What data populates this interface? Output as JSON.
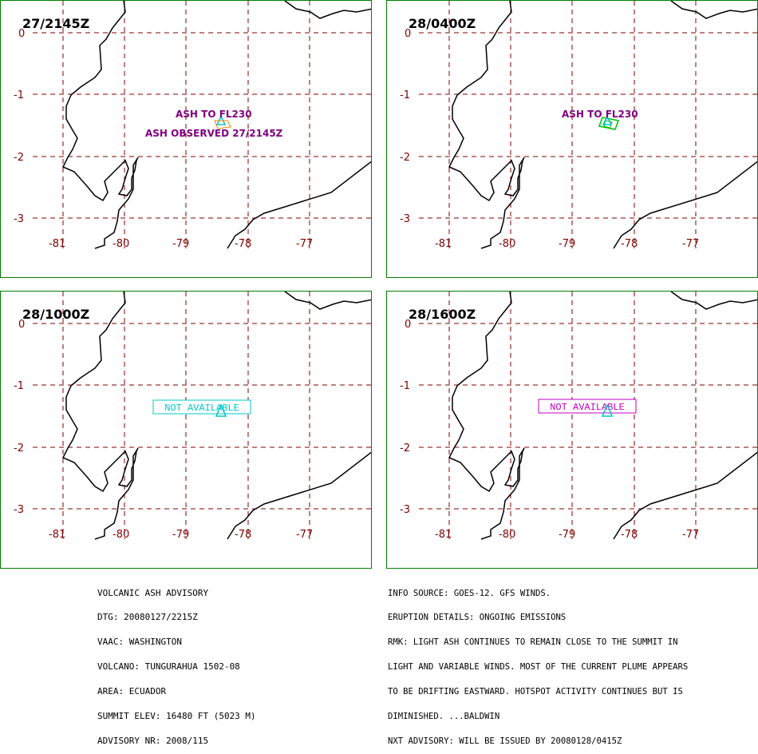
{
  "panels": [
    {
      "title": "27/2145Z",
      "labels": [
        "ASH TO FL230",
        "ASH OBSERVED 27/2145Z"
      ],
      "status": ""
    },
    {
      "title": "28/0400Z",
      "labels": [
        "ASH TO FL230"
      ],
      "status": ""
    },
    {
      "title": "28/1000Z",
      "labels": [],
      "status": "NOT AVAILABLE"
    },
    {
      "title": "28/1600Z",
      "labels": [],
      "status": "NOT AVAILABLE"
    }
  ],
  "axes": {
    "lat_ticks": [
      "0",
      "-1",
      "-2",
      "-3"
    ],
    "lon_ticks": [
      "-81",
      "-80",
      "-79",
      "-78",
      "-77"
    ]
  },
  "advisory_left": [
    "VOLCANIC ASH ADVISORY",
    "DTG: 20080127/2215Z",
    "VAAC: WASHINGTON",
    "VOLCANO: TUNGURAHUA 1502-08",
    "AREA: ECUADOR",
    "SUMMIT ELEV: 16480 FT (5023 M)",
    "ADVISORY NR: 2008/115"
  ],
  "advisory_right": [
    "INFO SOURCE: GOES-12. GFS WINDS.",
    "ERUPTION DETAILS: ONGOING EMISSIONS",
    "RMK: LIGHT ASH CONTINUES TO REMAIN CLOSE TO THE SUMMIT IN",
    "LIGHT AND VARIABLE WINDS. MOST OF THE CURRENT PLUME APPEARS",
    "TO BE DRIFTING EASTWARD. HOTSPOT ACTIVITY CONTINUES BUT IS",
    "DIMINISHED. ...BALDWIN",
    "NXT ADVISORY: WILL BE ISSUED BY 20080128/0415Z"
  ],
  "colors": {
    "grid": "#800000",
    "ash_label": "#800080",
    "volcano": "#00c8c8",
    "ash_area_1": "#ff8000",
    "ash_area_2": "#00c000",
    "na_panel3": "#00c8c8",
    "na_panel4": "#c000c0"
  }
}
